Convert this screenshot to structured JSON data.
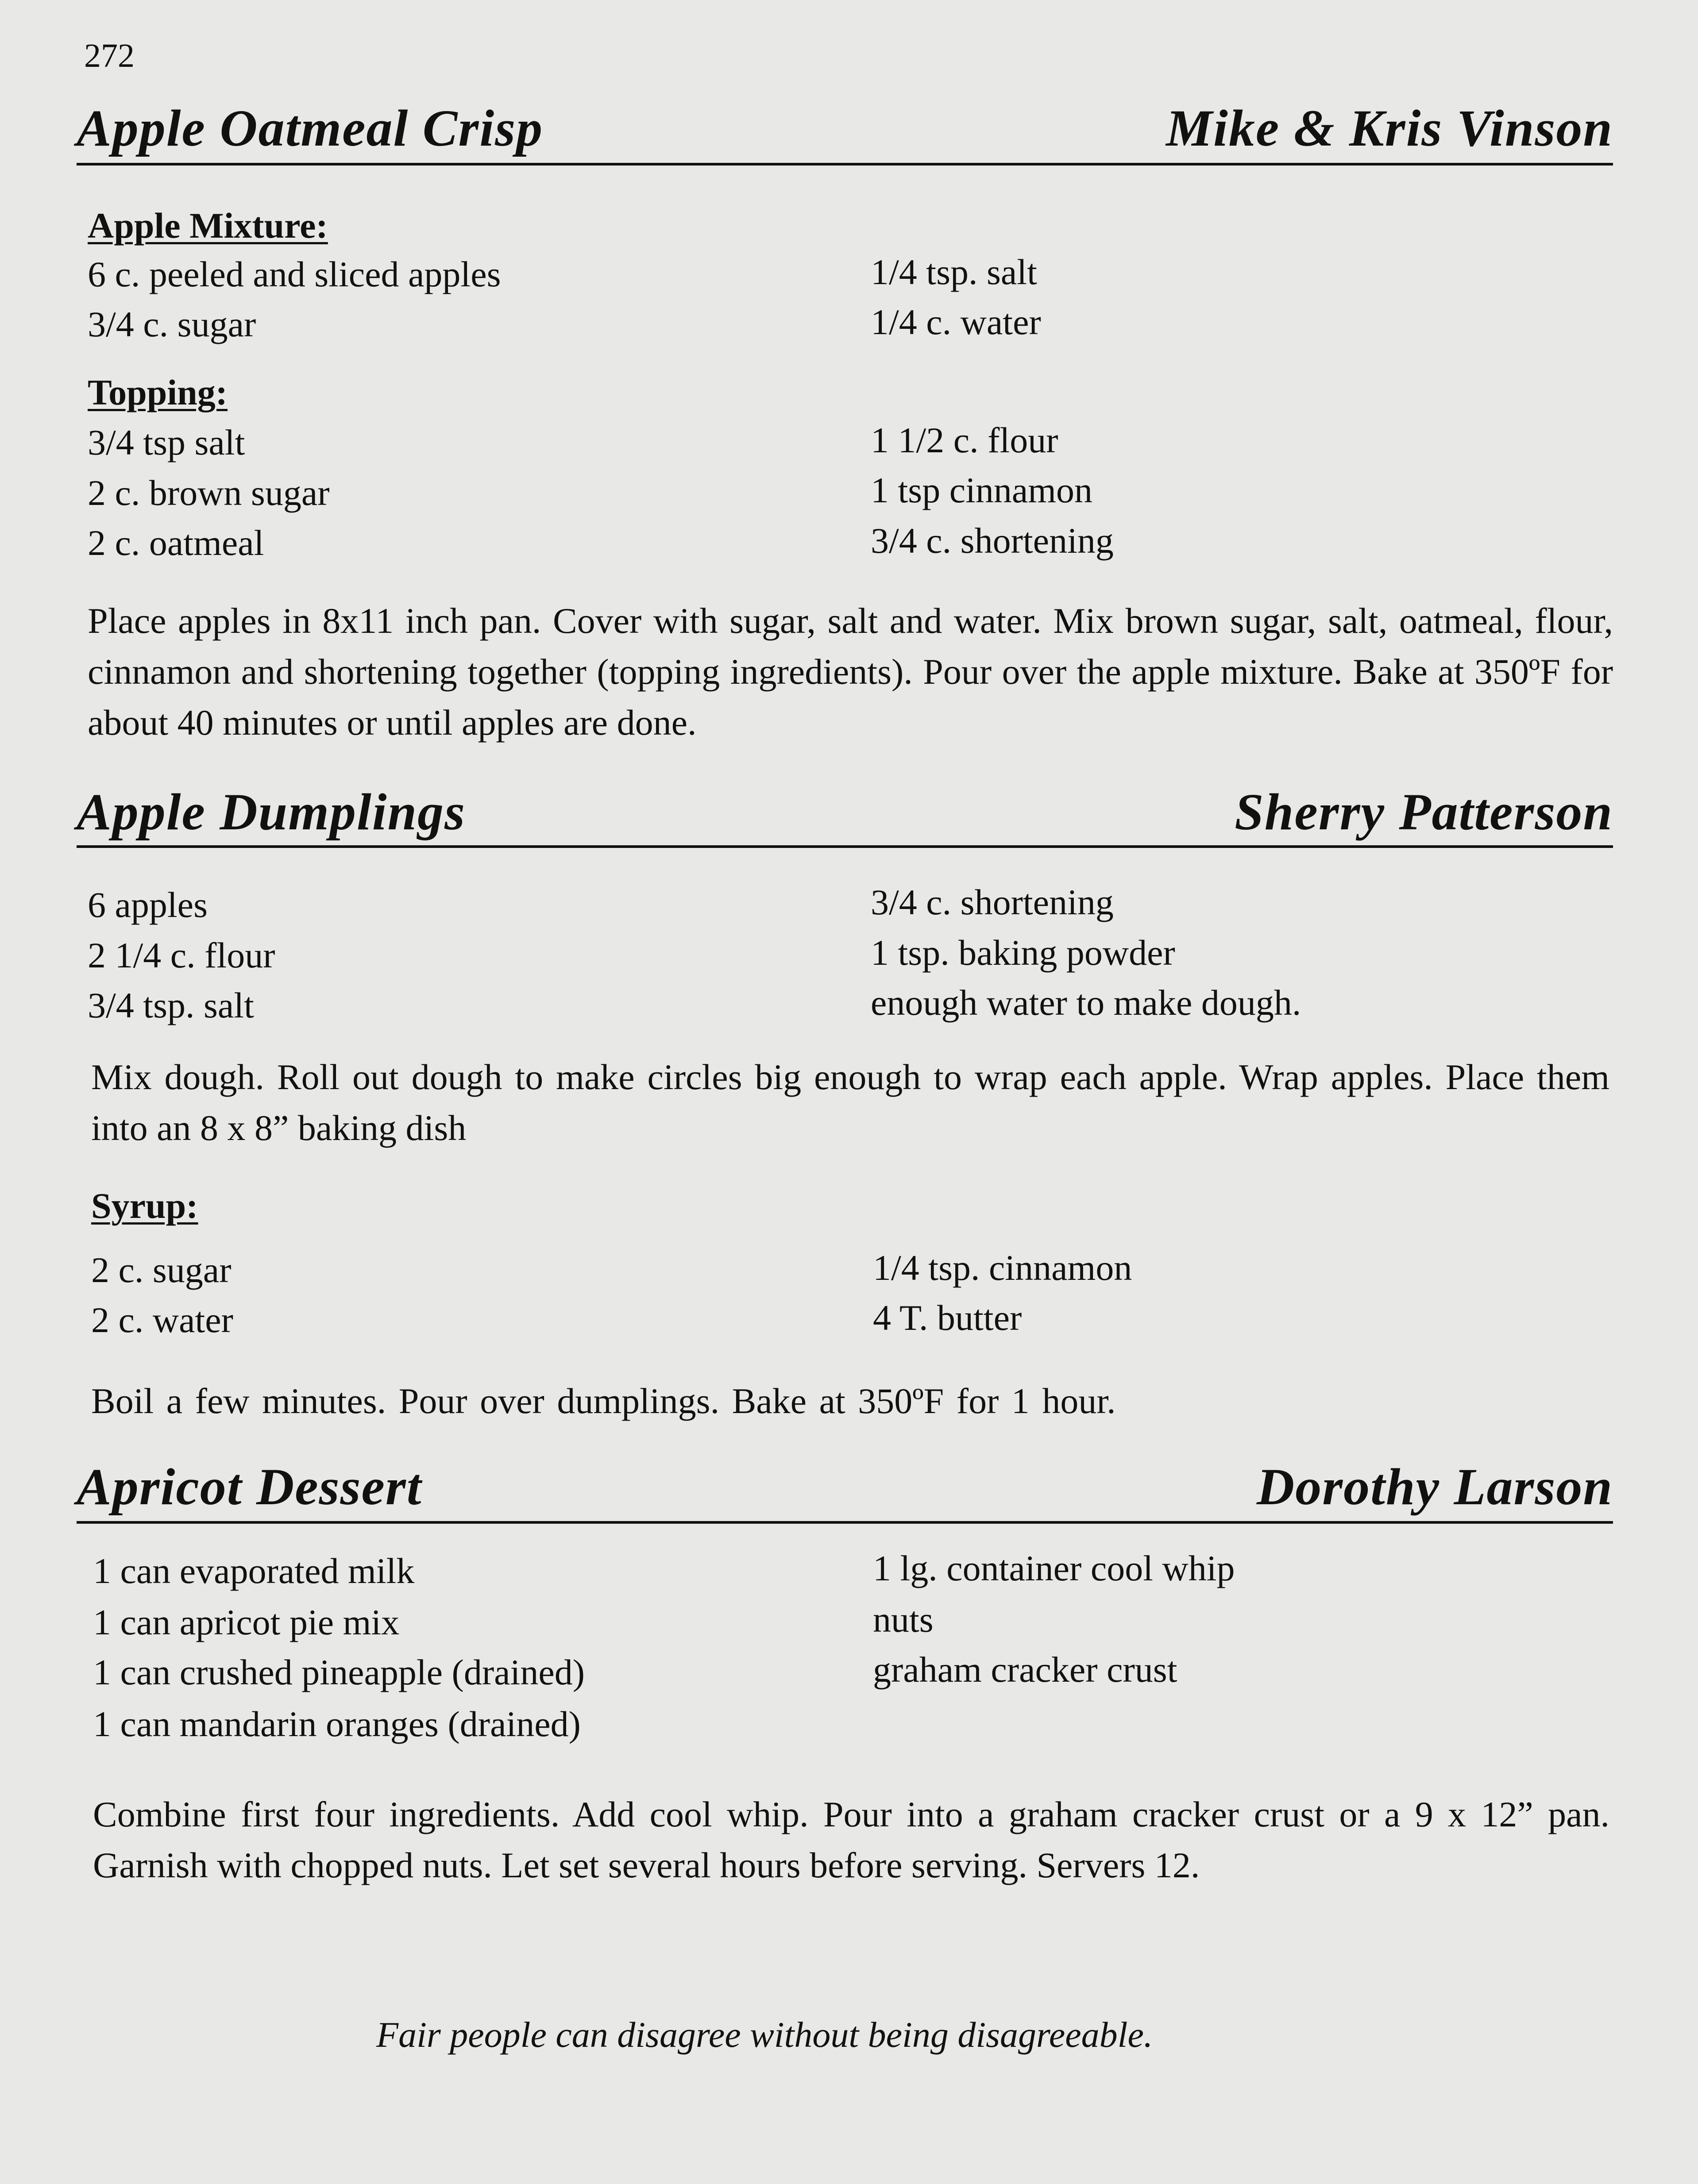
{
  "page_number": "272",
  "recipes": [
    {
      "title": "Apple Oatmeal Crisp",
      "author": "Mike & Kris Vinson",
      "sections": [
        {
          "heading": "Apple Mixture:",
          "left": [
            "6 c. peeled and sliced apples",
            "3/4 c. sugar"
          ],
          "right": [
            "1/4 tsp. salt",
            "1/4 c. water"
          ]
        },
        {
          "heading": "Topping:",
          "left": [
            "3/4 tsp salt",
            "2 c. brown sugar",
            "2 c. oatmeal"
          ],
          "right": [
            "1 1/2 c. flour",
            "1 tsp cinnamon",
            "3/4 c. shortening"
          ]
        }
      ],
      "directions": "Place apples in 8x11 inch pan. Cover with sugar, salt and water. Mix brown sugar, salt, oatmeal, flour, cinnamon and shortening together (topping ingredients). Pour over the apple mixture. Bake at 350ºF for about 40 minutes or until apples are done."
    },
    {
      "title": "Apple Dumplings",
      "author": "Sherry Patterson",
      "left": [
        "6 apples",
        "2 1/4 c. flour",
        "3/4 tsp. salt"
      ],
      "right": [
        "3/4 c. shortening",
        "1 tsp. baking powder",
        "enough water to make dough."
      ],
      "directions": "Mix dough. Roll out dough to make circles big enough to wrap each apple. Wrap apples. Place them into an 8 x 8” baking dish",
      "syrup": {
        "heading": "Syrup:",
        "left": [
          "2 c. sugar",
          "2 c. water"
        ],
        "right": [
          "1/4 tsp. cinnamon",
          "4 T. butter"
        ]
      },
      "syrup_directions": "Boil a few minutes. Pour over dumplings. Bake at 350ºF for 1 hour."
    },
    {
      "title": "Apricot Dessert",
      "author": "Dorothy Larson",
      "left": [
        "1 can evaporated milk",
        "1 can apricot pie mix",
        "1 can crushed pineapple (drained)",
        "1 can mandarin oranges (drained)"
      ],
      "right": [
        "1 lg. container cool whip",
        "nuts",
        "graham cracker crust"
      ],
      "directions": "Combine first four ingredients. Add cool whip. Pour into a graham cracker crust or a 9 x 12” pan. Garnish with chopped nuts. Let set several hours before serving. Servers 12."
    }
  ],
  "quote": "Fair people can disagree without being disagreeable."
}
